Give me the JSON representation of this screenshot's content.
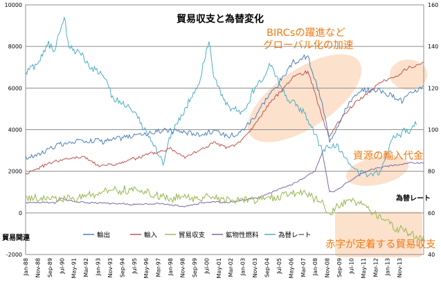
{
  "chart_data": {
    "type": "line",
    "title": "貿易収支と為替変化",
    "ylabel_left": "貿易関連",
    "ylabel_right": "為替レート",
    "ylim_left": [
      -2000,
      10000
    ],
    "ylim_right": [
      40,
      160
    ],
    "yticks_left": [
      "-2000",
      "0",
      "2000",
      "4000",
      "6000",
      "8000",
      "10000"
    ],
    "yticks_right": [
      "40",
      "60",
      "80",
      "100",
      "120",
      "140",
      "160"
    ],
    "x_tick_labels": [
      "Jan-88",
      "Nov-88",
      "Sep-89",
      "Jul-90",
      "May-91",
      "Mar-92",
      "Jan-93",
      "Nov-93",
      "Sep-94",
      "Jul-95",
      "May-96",
      "Mar-97",
      "Jan-98",
      "Nov-98",
      "Sep-99",
      "Jul-00",
      "May-01",
      "Mar-02",
      "Jan-03",
      "Nov-03",
      "Sep-04",
      "Jul-05",
      "May-06",
      "Mar-07",
      "Jan-08",
      "Nov-08",
      "Sep-09",
      "Jul-10",
      "May-11",
      "Mar-12",
      "Jan-13",
      "Nov-13"
    ],
    "legend": [
      "輸出",
      "輸入",
      "貿易収支",
      "鉱物性燃料",
      "為替レート"
    ],
    "series": [
      {
        "name": "輸出",
        "axis": "left",
        "color": "#4a7ebb",
        "keyframes": [
          [
            0,
            2600
          ],
          [
            24,
            3200
          ],
          [
            48,
            3500
          ],
          [
            72,
            3500
          ],
          [
            96,
            3800
          ],
          [
            120,
            4000
          ],
          [
            144,
            3800
          ],
          [
            156,
            3900
          ],
          [
            168,
            3700
          ],
          [
            180,
            4000
          ],
          [
            192,
            4800
          ],
          [
            204,
            5800
          ],
          [
            222,
            7200
          ],
          [
            234,
            7500
          ],
          [
            246,
            5200
          ],
          [
            252,
            3400
          ],
          [
            258,
            4200
          ],
          [
            270,
            5500
          ],
          [
            282,
            5900
          ],
          [
            294,
            5900
          ],
          [
            306,
            5600
          ],
          [
            312,
            5400
          ],
          [
            318,
            5700
          ],
          [
            330,
            6100
          ]
        ]
      },
      {
        "name": "輸入",
        "axis": "left",
        "color": "#c0504d",
        "keyframes": [
          [
            0,
            1900
          ],
          [
            24,
            2500
          ],
          [
            48,
            2700
          ],
          [
            60,
            2300
          ],
          [
            72,
            2300
          ],
          [
            96,
            2700
          ],
          [
            120,
            3100
          ],
          [
            132,
            2700
          ],
          [
            144,
            3000
          ],
          [
            156,
            3400
          ],
          [
            168,
            3100
          ],
          [
            180,
            3500
          ],
          [
            192,
            4400
          ],
          [
            204,
            5400
          ],
          [
            222,
            6500
          ],
          [
            234,
            6800
          ],
          [
            246,
            4600
          ],
          [
            252,
            3600
          ],
          [
            258,
            4300
          ],
          [
            270,
            5100
          ],
          [
            282,
            5700
          ],
          [
            294,
            6300
          ],
          [
            306,
            6500
          ],
          [
            318,
            7000
          ],
          [
            330,
            7200
          ]
        ]
      },
      {
        "name": "貿易収支",
        "axis": "left",
        "color": "#9bbb59",
        "keyframes": [
          [
            0,
            750
          ],
          [
            24,
            650
          ],
          [
            48,
            800
          ],
          [
            72,
            1100
          ],
          [
            96,
            1000
          ],
          [
            120,
            700
          ],
          [
            144,
            800
          ],
          [
            156,
            700
          ],
          [
            168,
            550
          ],
          [
            180,
            650
          ],
          [
            192,
            600
          ],
          [
            204,
            700
          ],
          [
            222,
            1000
          ],
          [
            234,
            900
          ],
          [
            246,
            500
          ],
          [
            252,
            -100
          ],
          [
            258,
            300
          ],
          [
            270,
            600
          ],
          [
            282,
            400
          ],
          [
            288,
            0
          ],
          [
            294,
            -100
          ],
          [
            306,
            -700
          ],
          [
            318,
            -1000
          ],
          [
            330,
            -1200
          ]
        ]
      },
      {
        "name": "鉱物性燃料",
        "axis": "left",
        "color": "#8064a2",
        "keyframes": [
          [
            0,
            500
          ],
          [
            24,
            500
          ],
          [
            30,
            700
          ],
          [
            36,
            600
          ],
          [
            48,
            500
          ],
          [
            72,
            450
          ],
          [
            96,
            400
          ],
          [
            108,
            450
          ],
          [
            120,
            400
          ],
          [
            132,
            300
          ],
          [
            144,
            450
          ],
          [
            156,
            550
          ],
          [
            168,
            500
          ],
          [
            180,
            600
          ],
          [
            192,
            700
          ],
          [
            204,
            1000
          ],
          [
            222,
            1400
          ],
          [
            234,
            1800
          ],
          [
            240,
            2000
          ],
          [
            246,
            2900
          ],
          [
            252,
            1000
          ],
          [
            258,
            1100
          ],
          [
            270,
            1600
          ],
          [
            282,
            2000
          ],
          [
            294,
            2200
          ],
          [
            306,
            2300
          ],
          [
            318,
            2400
          ],
          [
            330,
            2400
          ]
        ]
      },
      {
        "name": "為替レート",
        "axis": "right",
        "color": "#4bacc6",
        "keyframes": [
          [
            0,
            127
          ],
          [
            10,
            132
          ],
          [
            18,
            142
          ],
          [
            24,
            138
          ],
          [
            30,
            150
          ],
          [
            32,
            155
          ],
          [
            36,
            140
          ],
          [
            48,
            135
          ],
          [
            54,
            130
          ],
          [
            60,
            128
          ],
          [
            66,
            125
          ],
          [
            72,
            115
          ],
          [
            84,
            112
          ],
          [
            96,
            102
          ],
          [
            108,
            92
          ],
          [
            114,
            84
          ],
          [
            120,
            98
          ],
          [
            132,
            110
          ],
          [
            144,
            122
          ],
          [
            150,
            138
          ],
          [
            152,
            142
          ],
          [
            156,
            125
          ],
          [
            168,
            110
          ],
          [
            180,
            108
          ],
          [
            192,
            122
          ],
          [
            204,
            132
          ],
          [
            216,
            115
          ],
          [
            228,
            110
          ],
          [
            234,
            105
          ],
          [
            246,
            90
          ],
          [
            258,
            93
          ],
          [
            270,
            82
          ],
          [
            282,
            78
          ],
          [
            294,
            80
          ],
          [
            300,
            90
          ],
          [
            306,
            97
          ],
          [
            318,
            100
          ],
          [
            324,
            104
          ]
        ]
      }
    ]
  },
  "annotations": {
    "brics_line1": "BIRCsの躍進など",
    "brics_line2": "グローバル化の加速",
    "resources": "資源の輸入代金",
    "deficit": "赤字が定着する貿易収支"
  },
  "colors": {
    "highlight": "#f9c8a3",
    "annotation_text": "#f07a12",
    "gridline": "#8c8c8c"
  }
}
